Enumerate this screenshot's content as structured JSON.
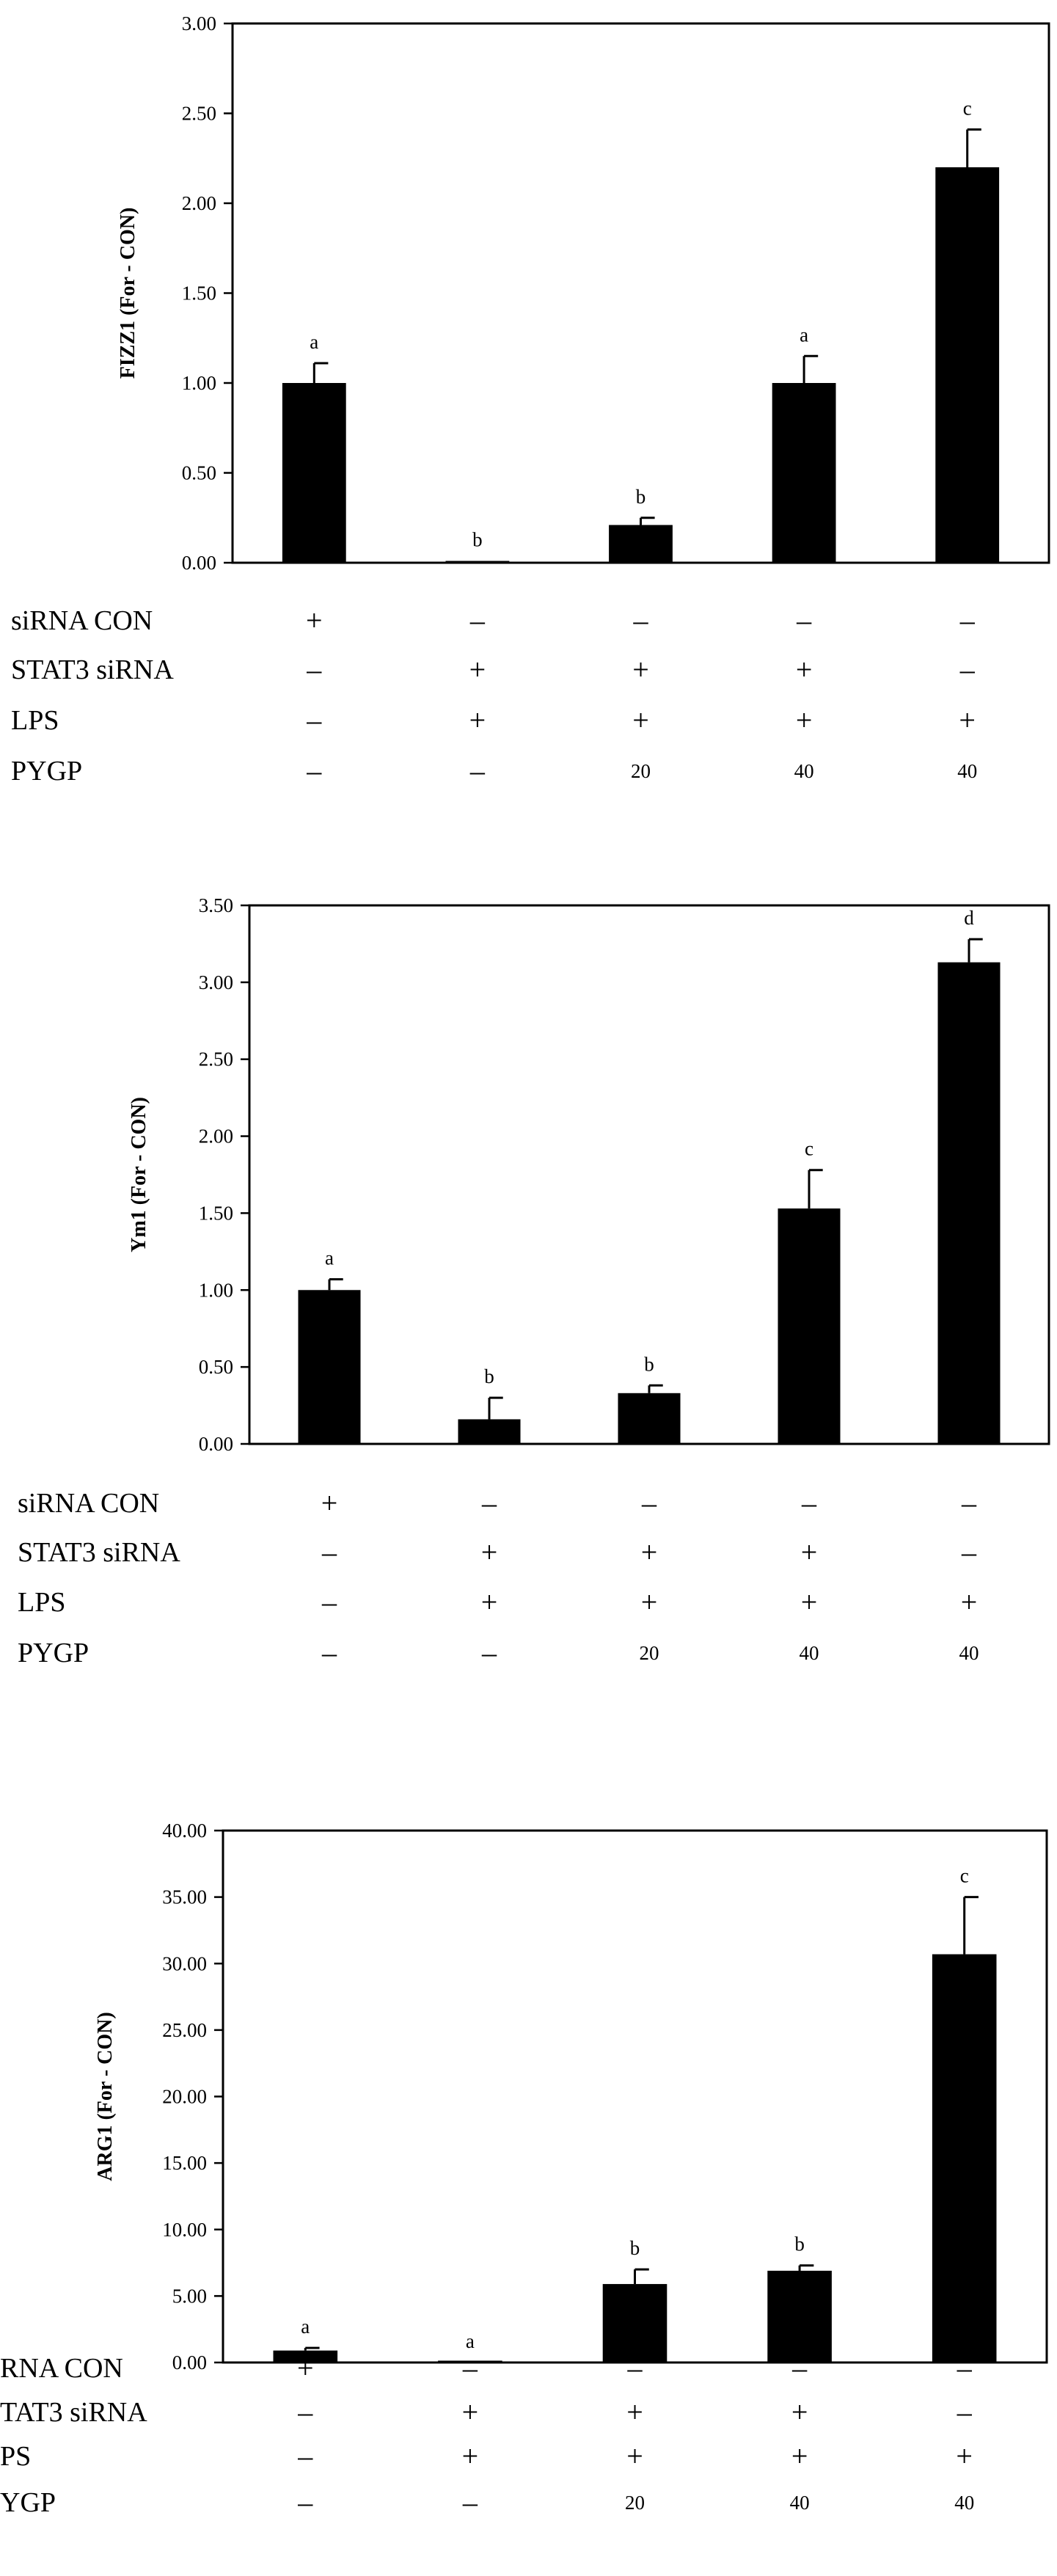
{
  "chart_data": [
    {
      "type": "bar",
      "ylabel": "FIZZ1 (For - CON)",
      "ylim": [
        0,
        3.0
      ],
      "yticks": [
        "0.00",
        "0.50",
        "1.00",
        "1.50",
        "2.00",
        "2.50",
        "3.00"
      ],
      "values": [
        1.0,
        0.01,
        0.21,
        1.0,
        2.2
      ],
      "errors": [
        0.11,
        0.0,
        0.04,
        0.15,
        0.21
      ],
      "significance": [
        "a",
        "b",
        "b",
        "a",
        "c"
      ],
      "bar_color": "#000000",
      "conditions": [
        {
          "label": "siRNA CON",
          "values": [
            "+",
            "–",
            "–",
            "–",
            "–"
          ]
        },
        {
          "label": "STAT3 siRNA",
          "values": [
            "–",
            "+",
            "+",
            "+",
            "–"
          ]
        },
        {
          "label": "LPS",
          "values": [
            "–",
            "+",
            "+",
            "+",
            "+"
          ]
        },
        {
          "label": "PYGP",
          "values": [
            "–",
            "–",
            "20",
            "40",
            "40"
          ]
        }
      ]
    },
    {
      "type": "bar",
      "ylabel": "Ym1 (For - CON)",
      "ylim": [
        0,
        3.5
      ],
      "yticks": [
        "0.00",
        "0.50",
        "1.00",
        "1.50",
        "2.00",
        "2.50",
        "3.00",
        "3.50"
      ],
      "values": [
        1.0,
        0.16,
        0.33,
        1.53,
        3.13
      ],
      "errors": [
        0.07,
        0.14,
        0.05,
        0.25,
        0.15
      ],
      "significance": [
        "a",
        "b",
        "b",
        "c",
        "d"
      ],
      "bar_color": "#000000",
      "conditions": [
        {
          "label": "siRNA CON",
          "values": [
            "+",
            "–",
            "–",
            "–",
            "–"
          ]
        },
        {
          "label": "STAT3 siRNA",
          "values": [
            "–",
            "+",
            "+",
            "+",
            "–"
          ]
        },
        {
          "label": "LPS",
          "values": [
            "–",
            "+",
            "+",
            "+",
            "+"
          ]
        },
        {
          "label": "PYGP",
          "values": [
            "–",
            "–",
            "20",
            "40",
            "40"
          ]
        }
      ]
    },
    {
      "type": "bar",
      "ylabel": "ARG1 (For - CON)",
      "ylim": [
        0,
        40.0
      ],
      "yticks": [
        "0.00",
        "5.00",
        "10.00",
        "15.00",
        "20.00",
        "25.00",
        "30.00",
        "35.00",
        "40.00"
      ],
      "values": [
        0.9,
        0.0,
        5.9,
        6.9,
        30.7
      ],
      "errors": [
        0.2,
        0.0,
        1.1,
        0.4,
        4.3
      ],
      "significance": [
        "a",
        "a",
        "b",
        "b",
        "c"
      ],
      "bar_color": "#000000",
      "conditions": [
        {
          "label": "RNA CON",
          "values": [
            "+",
            "–",
            "–",
            "–",
            "–"
          ]
        },
        {
          "label": "TAT3 siRNA",
          "values": [
            "–",
            "+",
            "+",
            "+",
            "–"
          ]
        },
        {
          "label": "PS",
          "values": [
            "–",
            "+",
            "+",
            "+",
            "+"
          ]
        },
        {
          "label": "YGP",
          "values": [
            "–",
            "–",
            "20",
            "40",
            "40"
          ]
        }
      ]
    }
  ]
}
